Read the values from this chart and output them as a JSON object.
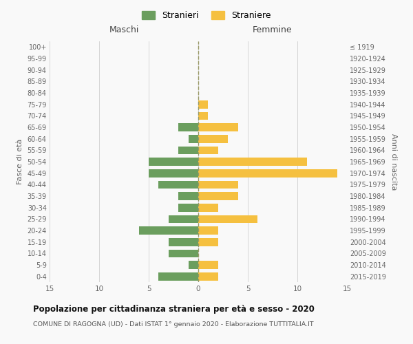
{
  "age_groups": [
    "0-4",
    "5-9",
    "10-14",
    "15-19",
    "20-24",
    "25-29",
    "30-34",
    "35-39",
    "40-44",
    "45-49",
    "50-54",
    "55-59",
    "60-64",
    "65-69",
    "70-74",
    "75-79",
    "80-84",
    "85-89",
    "90-94",
    "95-99",
    "100+"
  ],
  "birth_years": [
    "2015-2019",
    "2010-2014",
    "2005-2009",
    "2000-2004",
    "1995-1999",
    "1990-1994",
    "1985-1989",
    "1980-1984",
    "1975-1979",
    "1970-1974",
    "1965-1969",
    "1960-1964",
    "1955-1959",
    "1950-1954",
    "1945-1949",
    "1940-1944",
    "1935-1939",
    "1930-1934",
    "1925-1929",
    "1920-1924",
    "≤ 1919"
  ],
  "maschi": [
    4,
    1,
    3,
    3,
    6,
    3,
    2,
    2,
    4,
    5,
    5,
    2,
    1,
    2,
    0,
    0,
    0,
    0,
    0,
    0,
    0
  ],
  "femmine": [
    2,
    2,
    0,
    2,
    2,
    6,
    2,
    4,
    4,
    14,
    11,
    2,
    3,
    4,
    1,
    1,
    0,
    0,
    0,
    0,
    0
  ],
  "maschi_color": "#6b9e5e",
  "femmine_color": "#f5c040",
  "background_color": "#f9f9f9",
  "grid_color": "#d0d0d0",
  "title": "Popolazione per cittadinanza straniera per età e sesso - 2020",
  "subtitle": "COMUNE DI RAGOGNA (UD) - Dati ISTAT 1° gennaio 2020 - Elaborazione TUTTITALIA.IT",
  "xlabel_left": "Maschi",
  "xlabel_right": "Femmine",
  "ylabel_left": "Fasce di età",
  "ylabel_right": "Anni di nascita",
  "legend_stranieri": "Stranieri",
  "legend_straniere": "Straniere",
  "xlim": 15,
  "bar_height": 0.7
}
